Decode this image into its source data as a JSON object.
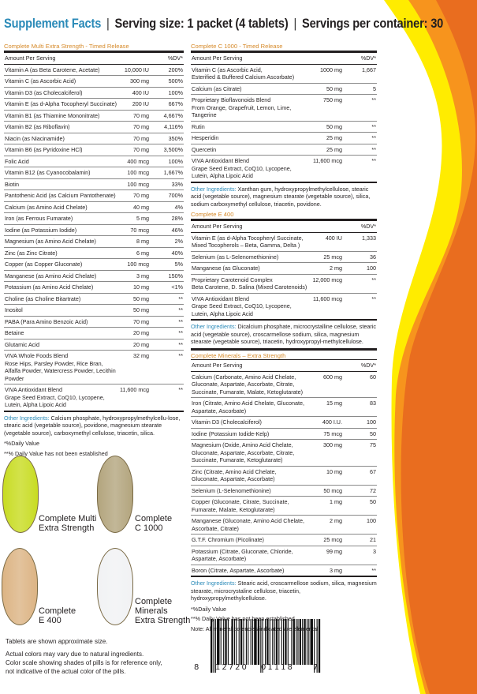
{
  "colors": {
    "brand": "#2a8ab8",
    "section_title": "#d68a2a",
    "yellow": "#ffec00",
    "orange": "#f7941d",
    "dark_orange": "#e96d1f"
  },
  "header": {
    "brand": "Supplement Facts",
    "serving_size": "Serving size: 1 packet (4 tablets)",
    "servings": "Servings per container: 30",
    "separator": "|"
  },
  "multi": {
    "title": "Complete Multi Extra Strength - Timed Release",
    "header": {
      "name": "Amount Per Serving",
      "amt": "",
      "dv": "%DV*"
    },
    "rows": [
      [
        "Vitamin A (as Beta Carotene, Acetate)",
        "10,000 IU",
        "200%"
      ],
      [
        "Vitamin C (as Ascorbic Acid)",
        "300 mg",
        "500%"
      ],
      [
        "Vitamin D3 (as Cholecalciferol)",
        "400 IU",
        "100%"
      ],
      [
        "Vitamin E (as d-Alpha Tocopheryl Succinate)",
        "200 IU",
        "667%"
      ],
      [
        "Vitamin B1 (as Thiamine Mononitrate)",
        "70 mg",
        "4,667%"
      ],
      [
        "Vitamin B2 (as Riboflavin)",
        "70 mg",
        "4,116%"
      ],
      [
        "Niacin (as Niacinamide)",
        "70 mg",
        "350%"
      ],
      [
        "Vitamin B6 (as Pyridoxine HCl)",
        "70 mg",
        "3,500%"
      ],
      [
        "Folic Acid",
        "400 mcg",
        "100%"
      ],
      [
        "Vitamin B12 (as Cyanocobalamin)",
        "100 mcg",
        "1,667%"
      ],
      [
        "Biotin",
        "100 mcg",
        "33%"
      ],
      [
        "Pantothenic Acid (as Calcium Pantothenate)",
        "70 mg",
        "700%"
      ],
      [
        "Calcium (as Amino Acid Chelate)",
        "40 mg",
        "4%"
      ],
      [
        "Iron (as Ferrous Fumarate)",
        "5 mg",
        "28%"
      ],
      [
        "Iodine (as Potassium Iodide)",
        "70 mcg",
        "46%"
      ],
      [
        "Magnesium (as Amino Acid Chelate)",
        "8 mg",
        "2%"
      ],
      [
        "Zinc (as Zinc Citrate)",
        "6 mg",
        "40%"
      ],
      [
        "Copper (as Copper Gluconate)",
        "100 mcg",
        "5%"
      ],
      [
        "Manganese (as Amino Acid Chelate)",
        "3 mg",
        "150%"
      ],
      [
        "Potassium (as Amino Acid Chelate)",
        "10 mg",
        "<1%"
      ],
      [
        "Choline (as Choline Bitartrate)",
        "50 mg",
        "**"
      ],
      [
        "Inositol",
        "50 mg",
        "**"
      ],
      [
        "PABA (Para Amino Benzoic Acid)",
        "70 mg",
        "**"
      ],
      [
        "Betaine",
        "20 mg",
        "**"
      ],
      [
        "Glutamic Acid",
        "20 mg",
        "**"
      ],
      [
        "VIVA Whole Foods Blend\nRose Hips, Parsley Powder, Rice Bran,\nAlfalfa Powder, Watercress Powder, Lecithin Powder",
        "32 mg",
        "**"
      ],
      [
        "VIVA Antioxidant Blend\nGrape Seed Extract, CoQ10, Lycopene,\nLutein, Alpha Lipoic Acid",
        "11,600 mcg",
        "**"
      ]
    ],
    "other_label": "Other Ingredients:",
    "other": " Calcium phosphate, hydroxypropylmethylcellu-lose, stearic acid (vegetable source), povidone, magnesium stearate (vegetable source), carboxymethyl cellulose, triacetin, silica.",
    "foot1": "*%Daily Value",
    "foot2": "**% Daily Value has not been established"
  },
  "c1000": {
    "title": "Complete C 1000 - Timed Release",
    "header": {
      "name": "Amount Per Serving",
      "amt": "",
      "dv": "%DV*"
    },
    "rows": [
      [
        "Vitamin C (as Ascorbic Acid,\nEsterified & Buffered Calcium Ascorbate)",
        "1000 mg",
        "1,667"
      ],
      [
        "Calcium (as Citrate)",
        "50 mg",
        "5"
      ],
      [
        "Proprietary Bioflavonoids Blend\nFrom Orange, Grapefruit, Lemon, Lime, Tangerine",
        "750 mg",
        "**"
      ],
      [
        "Rutin",
        "50 mg",
        "**"
      ],
      [
        "Hesperidin",
        "25 mg",
        "**"
      ],
      [
        "Quercetin",
        "25 mg",
        "**"
      ],
      [
        "VIVA Antioxidant Blend\nGrape Seed Extract, CoQ10, Lycopene,\nLutein, Alpha Lipoic Acid",
        "11,600 mcg",
        "**"
      ]
    ],
    "other_label": "Other Ingredients:",
    "other": " Xanthan gum, hydroxypropylmethylcellulose, stearic acid (vegetable source), magnesium stearate (vegetable source), silica, sodium carboxymethyl cellulose, triacetin, povidone."
  },
  "e400": {
    "title": "Complete E 400",
    "header": {
      "name": "Amount Per Serving",
      "amt": "",
      "dv": "%DV*"
    },
    "rows": [
      [
        "Vitamin E (as d-Alpha Tocopheryl Succinate,\nMixed Tocopherols – Beta, Gamma, Delta )",
        "400 IU",
        "1,333"
      ],
      [
        "Selenium (as L-Selenomethionine)",
        "25 mcg",
        "36"
      ],
      [
        "Manganese (as Gluconate)",
        "2 mg",
        "100"
      ],
      [
        "Proprietary Carotenoid Complex\nBeta Carotene, D. Salina (Mixed Carotenoids)",
        "12,000 mcg",
        "**"
      ],
      [
        "VIVA Antioxidant Blend\nGrape Seed Extract, CoQ10, Lycopene,\nLutein, Alpha Lipoic Acid",
        "11,600 mcg",
        "**"
      ]
    ],
    "other_label": "Other Ingredients:",
    "other": " Dicalcium phosphate, microcrystalline cellulose, stearic acid (vegetable source), croscarmellose sodium, silica, magnesium stearate (vegetable source), triacetin, hydroxypropyl-methylcellulose."
  },
  "minerals": {
    "title": "Complete Minerals – Extra Strength",
    "header": {
      "name": "Amount Per Serving",
      "amt": "",
      "dv": "%DV*"
    },
    "rows": [
      [
        "Calcium (Carbonate, Amino Acid Chelate,\nGluconate, Aspartate, Ascorbate, Citrate,\nSuccinate, Fumarate, Malate, Ketoglutarate)",
        "600  mg",
        "60"
      ],
      [
        "Iron (Citrate, Amino Acid Chelate, Gluconate,\nAspartate, Ascorbate)",
        "15 mg",
        "83"
      ],
      [
        "Vitamin D3 (Cholecalciferol)",
        "400 I.U.",
        "100"
      ],
      [
        "Iodine (Potassium Iodide-Kelp)",
        "75 mcg",
        "50"
      ],
      [
        "Magnesium (Oxide, Amino Acid Chelate,\nGluconate, Aspartate, Ascorbate, Citrate,\nSuccinate, Fumarate, Ketoglutarate)",
        "300 mg",
        "75"
      ],
      [
        "Zinc (Citrate, Amino Acid Chelate,\nGluconate, Aspartate, Ascorbate)",
        "10 mg",
        "67"
      ],
      [
        "Selenium (L-Selenomethionine)",
        "50 mcg",
        "72"
      ],
      [
        "Copper (Gluconate, Citrate, Succinate,\nFumarate, Malate, Ketoglutarate)",
        "1 mg",
        "50"
      ],
      [
        "Manganese (Gluconate, Amino Acid Chelate,\nAscorbate, Citrate)",
        "2 mg",
        "100"
      ],
      [
        "G.T.F. Chromium (Picolinate)",
        "25 mcg",
        "21"
      ],
      [
        "Potassium (Citrate, Gluconate, Chloride,\nAspartate, Ascorbate)",
        "99 mg",
        "3"
      ],
      [
        "Boron (Citrate, Aspartate, Ascorbate)",
        "3 mg",
        "**"
      ]
    ],
    "other_label": "Other Ingredients:",
    "other": " Stearic acid, croscarmellose sodium, silica, magnesium stearate, microcrystaline cellulose, triacetin, hydroxypropylmethylcellulose.",
    "foot1": "*%Daily Value",
    "foot2": "**% Daily Value has not been established",
    "note": "Note: All mineral potencies indicated are elemental."
  },
  "pills": [
    {
      "label": "Complete Multi\nExtra Strength",
      "color": "#c8dc1e"
    },
    {
      "label": "Complete\nC 1000",
      "color": "#b3a57e"
    },
    {
      "label": "Complete\nE 400",
      "color": "#dcb484"
    },
    {
      "label": "Complete\nMinerals\nExtra Strength",
      "color": "#f1f2f4"
    }
  ],
  "notes": {
    "size": "Tablets are shown approximate size.",
    "colors": "Actual colors may vary due to natural ingredients.\nColor scale showing shades of pills is for reference only,\nnot indicative of the actual color of the pills."
  },
  "barcode": {
    "first": "8",
    "left": "12720",
    "right": "01118",
    "check": "7"
  }
}
